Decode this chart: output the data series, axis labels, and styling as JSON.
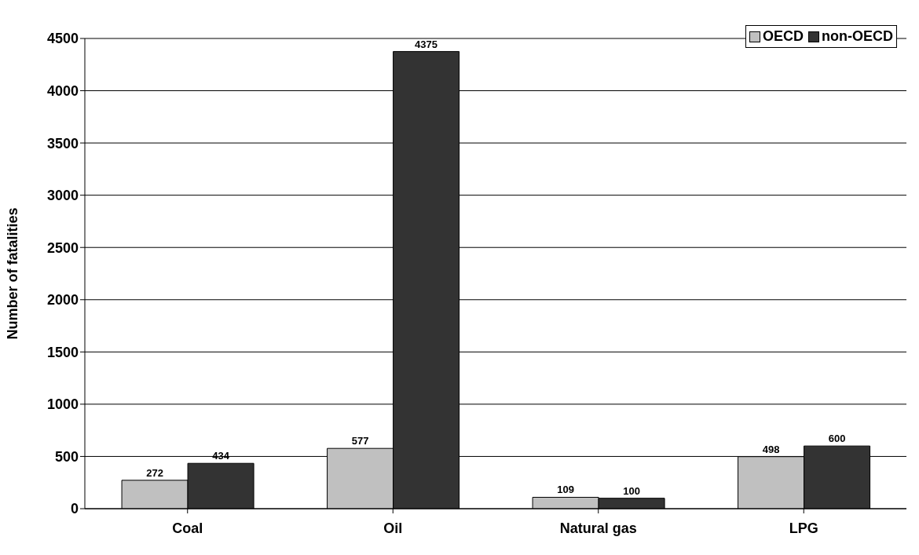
{
  "chart_data": {
    "type": "bar",
    "ylabel": "Number of fatalities",
    "categories": [
      "Coal",
      "Oil",
      "Natural gas",
      "LPG"
    ],
    "series": [
      {
        "name": "OECD",
        "color": "#c0c0c0",
        "values": [
          272,
          577,
          109,
          498
        ]
      },
      {
        "name": "non-OECD",
        "color": "#333333",
        "values": [
          434,
          4375,
          100,
          600
        ]
      }
    ],
    "ylim": [
      0,
      4500
    ],
    "yticks": [
      0,
      500,
      1000,
      1500,
      2000,
      2500,
      3000,
      3500,
      4000,
      4500
    ],
    "grid": "y",
    "legend": "top right",
    "data_labels": true
  }
}
